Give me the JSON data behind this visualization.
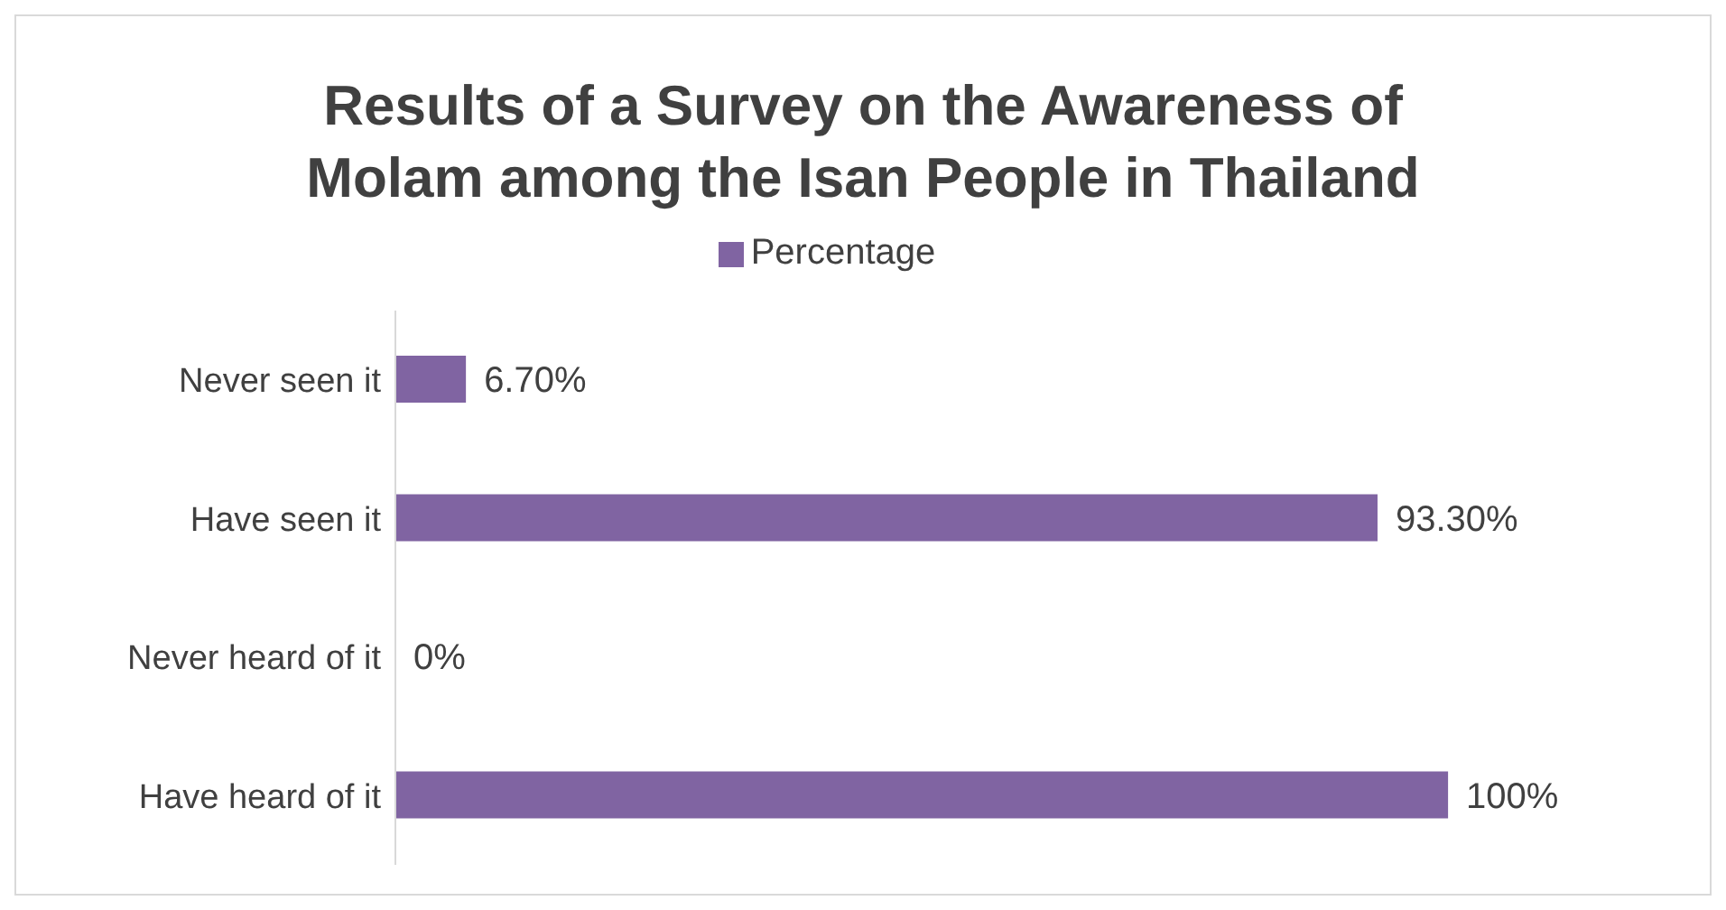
{
  "chart_data": {
    "type": "bar",
    "orientation": "horizontal",
    "title": "Results of a Survey on the Awareness of Molam among the Isan People in Thailand",
    "categories": [
      "Never seen it",
      "Have seen it",
      "Never heard of it",
      "Have heard of it"
    ],
    "series": [
      {
        "name": "Percentage",
        "color": "#8064a2",
        "values": [
          6.7,
          93.3,
          0,
          100
        ],
        "value_labels": [
          "6.70%",
          "93.30%",
          "0%",
          "100%"
        ]
      }
    ],
    "legend": "top",
    "grid": false
  }
}
